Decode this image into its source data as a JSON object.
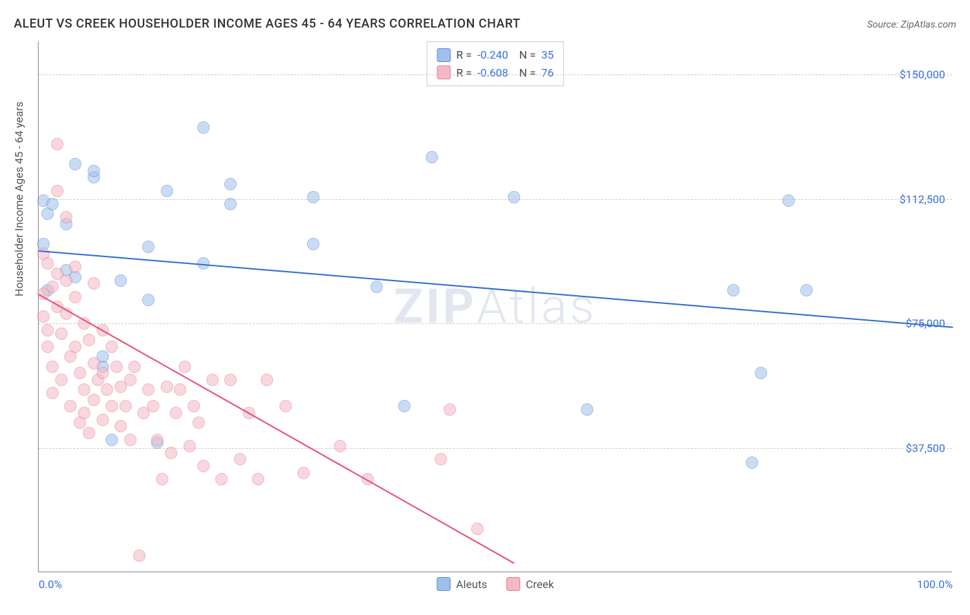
{
  "header": {
    "title": "ALEUT VS CREEK HOUSEHOLDER INCOME AGES 45 - 64 YEARS CORRELATION CHART",
    "source": "Source: ZipAtlas.com"
  },
  "chart": {
    "type": "scatter",
    "y_axis_label": "Householder Income Ages 45 - 64 years",
    "xlim": [
      0,
      100
    ],
    "ylim": [
      0,
      160000
    ],
    "x_ticks": [
      {
        "value": 0,
        "label": "0.0%"
      },
      {
        "value": 100,
        "label": "100.0%"
      }
    ],
    "y_ticks": [
      {
        "value": 37500,
        "label": "$37,500"
      },
      {
        "value": 75000,
        "label": "$75,000"
      },
      {
        "value": 112500,
        "label": "$112,500"
      },
      {
        "value": 150000,
        "label": "$150,000"
      }
    ],
    "background_color": "#ffffff",
    "grid_color": "#cccccc",
    "axis_label_color": "#3b6fd6",
    "marker_radius": 9,
    "marker_opacity": 0.55,
    "watermark_text_bold": "ZIP",
    "watermark_text_rest": "Atlas",
    "series": [
      {
        "name": "Aleuts",
        "fill_color": "#9fc0eb",
        "stroke_color": "#5a8fd6",
        "line_color": "#2f6fd0",
        "line_width": 2,
        "R": "-0.240",
        "N": "35",
        "trend": {
          "x1": 0,
          "y1": 97000,
          "x2": 100,
          "y2": 74000
        },
        "points": [
          [
            0.5,
            99000
          ],
          [
            0.5,
            112000
          ],
          [
            1,
            108000
          ],
          [
            1,
            85000
          ],
          [
            1.5,
            111000
          ],
          [
            3,
            91000
          ],
          [
            3,
            105000
          ],
          [
            4,
            123000
          ],
          [
            4,
            89000
          ],
          [
            6,
            119000
          ],
          [
            6,
            121000
          ],
          [
            7,
            62000
          ],
          [
            7,
            65000
          ],
          [
            8,
            40000
          ],
          [
            9,
            88000
          ],
          [
            12,
            82000
          ],
          [
            12,
            98000
          ],
          [
            13,
            39000
          ],
          [
            14,
            115000
          ],
          [
            18,
            134000
          ],
          [
            18,
            93000
          ],
          [
            21,
            111000
          ],
          [
            21,
            117000
          ],
          [
            30,
            113000
          ],
          [
            30,
            99000
          ],
          [
            37,
            86000
          ],
          [
            40,
            50000
          ],
          [
            43,
            125000
          ],
          [
            52,
            113000
          ],
          [
            60,
            49000
          ],
          [
            76,
            85000
          ],
          [
            78,
            33000
          ],
          [
            79,
            60000
          ],
          [
            82,
            112000
          ],
          [
            84,
            85000
          ]
        ]
      },
      {
        "name": "Creek",
        "fill_color": "#f4b8c4",
        "stroke_color": "#e77f95",
        "line_color": "#e64f7a",
        "line_width": 2,
        "R": "-0.608",
        "N": "76",
        "trend": {
          "x1": 0,
          "y1": 84000,
          "x2": 52,
          "y2": 3000
        },
        "points": [
          [
            0.5,
            96000
          ],
          [
            0.5,
            84000
          ],
          [
            0.5,
            77000
          ],
          [
            1,
            93000
          ],
          [
            1,
            73000
          ],
          [
            1,
            68000
          ],
          [
            1.5,
            86000
          ],
          [
            1.5,
            62000
          ],
          [
            1.5,
            54000
          ],
          [
            2,
            129000
          ],
          [
            2,
            115000
          ],
          [
            2,
            90000
          ],
          [
            2,
            80000
          ],
          [
            2.5,
            72000
          ],
          [
            2.5,
            58000
          ],
          [
            3,
            107000
          ],
          [
            3,
            88000
          ],
          [
            3,
            78000
          ],
          [
            3.5,
            65000
          ],
          [
            3.5,
            50000
          ],
          [
            4,
            92000
          ],
          [
            4,
            83000
          ],
          [
            4,
            68000
          ],
          [
            4.5,
            60000
          ],
          [
            4.5,
            45000
          ],
          [
            5,
            75000
          ],
          [
            5,
            55000
          ],
          [
            5,
            48000
          ],
          [
            5.5,
            70000
          ],
          [
            5.5,
            42000
          ],
          [
            6,
            87000
          ],
          [
            6,
            63000
          ],
          [
            6,
            52000
          ],
          [
            6.5,
            58000
          ],
          [
            7,
            73000
          ],
          [
            7,
            60000
          ],
          [
            7,
            46000
          ],
          [
            7.5,
            55000
          ],
          [
            8,
            68000
          ],
          [
            8,
            50000
          ],
          [
            8.5,
            62000
          ],
          [
            9,
            56000
          ],
          [
            9,
            44000
          ],
          [
            9.5,
            50000
          ],
          [
            10,
            58000
          ],
          [
            10,
            40000
          ],
          [
            10.5,
            62000
          ],
          [
            11,
            5000
          ],
          [
            11.5,
            48000
          ],
          [
            12,
            55000
          ],
          [
            12.5,
            50000
          ],
          [
            13,
            40000
          ],
          [
            13.5,
            28000
          ],
          [
            14,
            56000
          ],
          [
            14.5,
            36000
          ],
          [
            15,
            48000
          ],
          [
            15.5,
            55000
          ],
          [
            16,
            62000
          ],
          [
            16.5,
            38000
          ],
          [
            17,
            50000
          ],
          [
            17.5,
            45000
          ],
          [
            18,
            32000
          ],
          [
            19,
            58000
          ],
          [
            20,
            28000
          ],
          [
            21,
            58000
          ],
          [
            22,
            34000
          ],
          [
            23,
            48000
          ],
          [
            24,
            28000
          ],
          [
            25,
            58000
          ],
          [
            27,
            50000
          ],
          [
            29,
            30000
          ],
          [
            33,
            38000
          ],
          [
            36,
            28000
          ],
          [
            44,
            34000
          ],
          [
            45,
            49000
          ],
          [
            48,
            13000
          ]
        ]
      }
    ],
    "bottom_legend": [
      {
        "label": "Aleuts",
        "swatch": "#9fc0eb",
        "border": "#5a8fd6"
      },
      {
        "label": "Creek",
        "swatch": "#f4b8c4",
        "border": "#e77f95"
      }
    ]
  }
}
